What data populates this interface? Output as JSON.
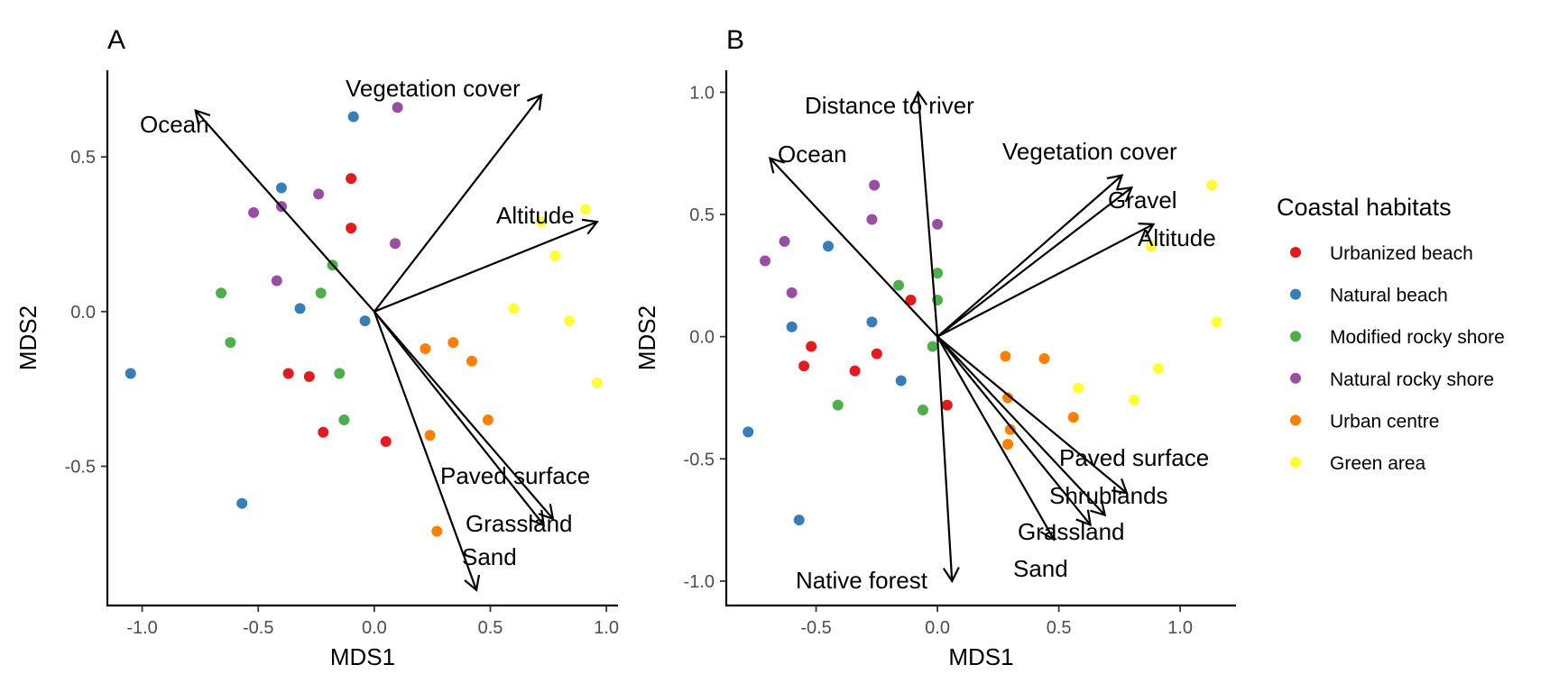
{
  "chart_data": [
    {
      "type": "scatter",
      "panel_label": "A",
      "xlabel": "MDS1",
      "ylabel": "MDS2",
      "xlim": [
        -1.15,
        1.05
      ],
      "ylim": [
        -0.95,
        0.78
      ],
      "x_ticks": [
        -1.0,
        -0.5,
        0.0,
        0.5,
        1.0
      ],
      "x_tick_labels": [
        "-1.0",
        "-0.5",
        "0.0",
        "0.5",
        "1.0"
      ],
      "y_ticks": [
        -0.5,
        0.0,
        0.5
      ],
      "y_tick_labels": [
        "-0.5",
        "0.0",
        "0.5"
      ],
      "grid": false,
      "points": [
        {
          "x": -0.1,
          "y": 0.43,
          "habitat": "Urbanized beach"
        },
        {
          "x": -0.1,
          "y": 0.27,
          "habitat": "Urbanized beach"
        },
        {
          "x": -0.37,
          "y": -0.2,
          "habitat": "Urbanized beach"
        },
        {
          "x": -0.28,
          "y": -0.21,
          "habitat": "Urbanized beach"
        },
        {
          "x": -0.22,
          "y": -0.39,
          "habitat": "Urbanized beach"
        },
        {
          "x": 0.05,
          "y": -0.42,
          "habitat": "Urbanized beach"
        },
        {
          "x": -0.09,
          "y": 0.63,
          "habitat": "Natural beach"
        },
        {
          "x": -0.4,
          "y": 0.4,
          "habitat": "Natural beach"
        },
        {
          "x": -0.32,
          "y": 0.01,
          "habitat": "Natural beach"
        },
        {
          "x": -0.04,
          "y": -0.03,
          "habitat": "Natural beach"
        },
        {
          "x": -1.05,
          "y": -0.2,
          "habitat": "Natural beach"
        },
        {
          "x": -0.57,
          "y": -0.62,
          "habitat": "Natural beach"
        },
        {
          "x": -0.18,
          "y": 0.15,
          "habitat": "Modified rocky shore"
        },
        {
          "x": -0.66,
          "y": 0.06,
          "habitat": "Modified rocky shore"
        },
        {
          "x": -0.23,
          "y": 0.06,
          "habitat": "Modified rocky shore"
        },
        {
          "x": -0.62,
          "y": -0.1,
          "habitat": "Modified rocky shore"
        },
        {
          "x": -0.15,
          "y": -0.2,
          "habitat": "Modified rocky shore"
        },
        {
          "x": -0.13,
          "y": -0.35,
          "habitat": "Modified rocky shore"
        },
        {
          "x": 0.1,
          "y": 0.66,
          "habitat": "Natural rocky shore"
        },
        {
          "x": -0.24,
          "y": 0.38,
          "habitat": "Natural rocky shore"
        },
        {
          "x": -0.4,
          "y": 0.34,
          "habitat": "Natural rocky shore"
        },
        {
          "x": -0.52,
          "y": 0.32,
          "habitat": "Natural rocky shore"
        },
        {
          "x": 0.09,
          "y": 0.22,
          "habitat": "Natural rocky shore"
        },
        {
          "x": -0.42,
          "y": 0.1,
          "habitat": "Natural rocky shore"
        },
        {
          "x": 0.22,
          "y": -0.12,
          "habitat": "Urban centre"
        },
        {
          "x": 0.34,
          "y": -0.1,
          "habitat": "Urban centre"
        },
        {
          "x": 0.42,
          "y": -0.16,
          "habitat": "Urban centre"
        },
        {
          "x": 0.49,
          "y": -0.35,
          "habitat": "Urban centre"
        },
        {
          "x": 0.24,
          "y": -0.4,
          "habitat": "Urban centre"
        },
        {
          "x": 0.27,
          "y": -0.71,
          "habitat": "Urban centre"
        },
        {
          "x": 0.91,
          "y": 0.33,
          "habitat": "Green area"
        },
        {
          "x": 0.72,
          "y": 0.29,
          "habitat": "Green area"
        },
        {
          "x": 0.78,
          "y": 0.18,
          "habitat": "Green area"
        },
        {
          "x": 0.6,
          "y": 0.01,
          "habitat": "Green area"
        },
        {
          "x": 0.84,
          "y": -0.03,
          "habitat": "Green area"
        },
        {
          "x": 0.96,
          "y": -0.23,
          "habitat": "Green area"
        }
      ],
      "vectors": [
        {
          "label": "Ocean",
          "x": -0.77,
          "y": 0.65
        },
        {
          "label": "Vegetation cover",
          "x": 0.72,
          "y": 0.7
        },
        {
          "label": "Altitude",
          "x": 0.96,
          "y": 0.29
        },
        {
          "label": "Paved surface",
          "x": 0.77,
          "y": -0.67
        },
        {
          "label": "Grassland",
          "x": 0.73,
          "y": -0.69
        },
        {
          "label": "Sand",
          "x": 0.44,
          "y": -0.9
        }
      ]
    },
    {
      "type": "scatter",
      "panel_label": "B",
      "xlabel": "MDS1",
      "ylabel": "MDS2",
      "xlim": [
        -0.87,
        1.23
      ],
      "ylim": [
        -1.1,
        1.09
      ],
      "x_ticks": [
        -0.5,
        0.0,
        0.5,
        1.0
      ],
      "x_tick_labels": [
        "-0.5",
        "0.0",
        "0.5",
        "1.0"
      ],
      "y_ticks": [
        -1.0,
        -0.5,
        0.0,
        0.5,
        1.0
      ],
      "y_tick_labels": [
        "-1.0",
        "-0.5",
        "0.0",
        "0.5",
        "1.0"
      ],
      "grid": false,
      "points": [
        {
          "x": -0.11,
          "y": 0.15,
          "habitat": "Urbanized beach"
        },
        {
          "x": -0.52,
          "y": -0.04,
          "habitat": "Urbanized beach"
        },
        {
          "x": -0.55,
          "y": -0.12,
          "habitat": "Urbanized beach"
        },
        {
          "x": -0.25,
          "y": -0.07,
          "habitat": "Urbanized beach"
        },
        {
          "x": -0.34,
          "y": -0.14,
          "habitat": "Urbanized beach"
        },
        {
          "x": 0.04,
          "y": -0.28,
          "habitat": "Urbanized beach"
        },
        {
          "x": -0.45,
          "y": 0.37,
          "habitat": "Natural beach"
        },
        {
          "x": -0.6,
          "y": 0.04,
          "habitat": "Natural beach"
        },
        {
          "x": -0.27,
          "y": 0.06,
          "habitat": "Natural beach"
        },
        {
          "x": -0.15,
          "y": -0.18,
          "habitat": "Natural beach"
        },
        {
          "x": -0.78,
          "y": -0.39,
          "habitat": "Natural beach"
        },
        {
          "x": -0.57,
          "y": -0.75,
          "habitat": "Natural beach"
        },
        {
          "x": -0.16,
          "y": 0.21,
          "habitat": "Modified rocky shore"
        },
        {
          "x": 0.0,
          "y": 0.26,
          "habitat": "Modified rocky shore"
        },
        {
          "x": 0.0,
          "y": 0.15,
          "habitat": "Modified rocky shore"
        },
        {
          "x": -0.02,
          "y": -0.04,
          "habitat": "Modified rocky shore"
        },
        {
          "x": -0.41,
          "y": -0.28,
          "habitat": "Modified rocky shore"
        },
        {
          "x": -0.06,
          "y": -0.3,
          "habitat": "Modified rocky shore"
        },
        {
          "x": -0.26,
          "y": 0.62,
          "habitat": "Natural rocky shore"
        },
        {
          "x": -0.27,
          "y": 0.48,
          "habitat": "Natural rocky shore"
        },
        {
          "x": 0.0,
          "y": 0.46,
          "habitat": "Natural rocky shore"
        },
        {
          "x": -0.63,
          "y": 0.39,
          "habitat": "Natural rocky shore"
        },
        {
          "x": -0.71,
          "y": 0.31,
          "habitat": "Natural rocky shore"
        },
        {
          "x": -0.6,
          "y": 0.18,
          "habitat": "Natural rocky shore"
        },
        {
          "x": 0.28,
          "y": -0.08,
          "habitat": "Urban centre"
        },
        {
          "x": 0.44,
          "y": -0.09,
          "habitat": "Urban centre"
        },
        {
          "x": 0.29,
          "y": -0.25,
          "habitat": "Urban centre"
        },
        {
          "x": 0.56,
          "y": -0.33,
          "habitat": "Urban centre"
        },
        {
          "x": 0.3,
          "y": -0.38,
          "habitat": "Urban centre"
        },
        {
          "x": 0.29,
          "y": -0.44,
          "habitat": "Urban centre"
        },
        {
          "x": 1.13,
          "y": 0.62,
          "habitat": "Green area"
        },
        {
          "x": 0.88,
          "y": 0.37,
          "habitat": "Green area"
        },
        {
          "x": 1.15,
          "y": 0.06,
          "habitat": "Green area"
        },
        {
          "x": 0.91,
          "y": -0.13,
          "habitat": "Green area"
        },
        {
          "x": 0.58,
          "y": -0.21,
          "habitat": "Green area"
        },
        {
          "x": 0.81,
          "y": -0.26,
          "habitat": "Green area"
        }
      ],
      "vectors": [
        {
          "label": "Distance to river",
          "x": -0.08,
          "y": 1.0
        },
        {
          "label": "Ocean",
          "x": -0.69,
          "y": 0.73
        },
        {
          "label": "Vegetation cover",
          "x": 0.76,
          "y": 0.66
        },
        {
          "label": "Gravel",
          "x": 0.8,
          "y": 0.61
        },
        {
          "label": "Altitude",
          "x": 0.89,
          "y": 0.46
        },
        {
          "label": "Paved surface",
          "x": 0.78,
          "y": -0.64
        },
        {
          "label": "Shrublands",
          "x": 0.69,
          "y": -0.73
        },
        {
          "label": "Grassland",
          "x": 0.63,
          "y": -0.77
        },
        {
          "label": "Sand",
          "x": 0.48,
          "y": -0.83
        },
        {
          "label": "Native forest",
          "x": 0.06,
          "y": -1.0
        }
      ]
    }
  ],
  "legend": {
    "title": "Coastal habitats",
    "placement": "right",
    "items": [
      {
        "label": "Urbanized beach",
        "color": "#e41a1c"
      },
      {
        "label": "Natural beach",
        "color": "#377eb8"
      },
      {
        "label": "Modified rocky shore",
        "color": "#4daf4a"
      },
      {
        "label": "Natural rocky shore",
        "color": "#984ea3"
      },
      {
        "label": "Urban centre",
        "color": "#ff7f00"
      },
      {
        "label": "Green area",
        "color": "#ffff33"
      }
    ]
  }
}
